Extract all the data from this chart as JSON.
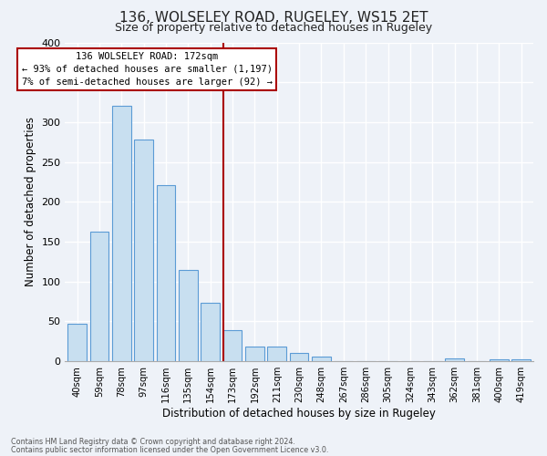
{
  "title": "136, WOLSELEY ROAD, RUGELEY, WS15 2ET",
  "subtitle": "Size of property relative to detached houses in Rugeley",
  "xlabel": "Distribution of detached houses by size in Rugeley",
  "ylabel": "Number of detached properties",
  "bar_labels": [
    "40sqm",
    "59sqm",
    "78sqm",
    "97sqm",
    "116sqm",
    "135sqm",
    "154sqm",
    "173sqm",
    "192sqm",
    "211sqm",
    "230sqm",
    "248sqm",
    "267sqm",
    "286sqm",
    "305sqm",
    "324sqm",
    "343sqm",
    "362sqm",
    "381sqm",
    "400sqm",
    "419sqm"
  ],
  "bar_values": [
    47,
    163,
    320,
    278,
    221,
    115,
    74,
    39,
    18,
    18,
    10,
    6,
    0,
    0,
    0,
    0,
    0,
    4,
    0,
    3,
    2
  ],
  "bar_color": "#c8dff0",
  "bar_edge_color": "#5b9bd5",
  "vline_index": 7,
  "vline_color": "#aa0000",
  "ylim": [
    0,
    400
  ],
  "yticks": [
    0,
    50,
    100,
    150,
    200,
    250,
    300,
    350,
    400
  ],
  "annotation_title": "136 WOLSELEY ROAD: 172sqm",
  "annotation_line1": "← 93% of detached houses are smaller (1,197)",
  "annotation_line2": "7% of semi-detached houses are larger (92) →",
  "annotation_box_color": "#ffffff",
  "annotation_box_edge": "#aa0000",
  "footer_line1": "Contains HM Land Registry data © Crown copyright and database right 2024.",
  "footer_line2": "Contains public sector information licensed under the Open Government Licence v3.0.",
  "bg_color": "#eef2f8",
  "plot_bg_color": "#eef2f8",
  "grid_color": "#ffffff",
  "title_fontsize": 11,
  "subtitle_fontsize": 9
}
